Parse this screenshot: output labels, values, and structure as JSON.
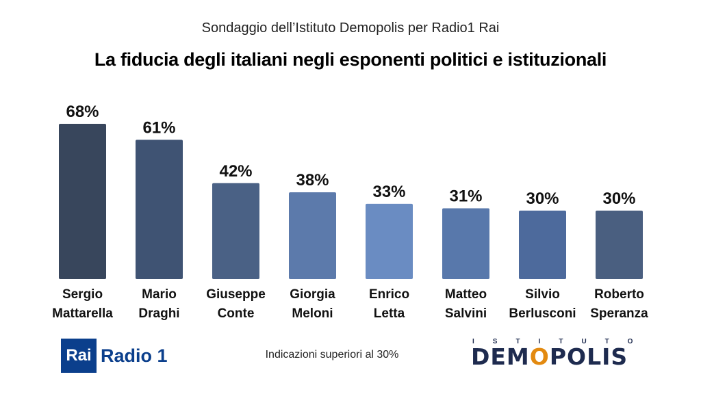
{
  "header": {
    "subtitle": "Sondaggio dell’Istituto Demopolis per Radio1 Rai",
    "title": "La fiducia degli italiani negli esponenti politici e istituzionali"
  },
  "chart_data": {
    "type": "bar",
    "title": "La fiducia degli italiani negli esponenti politici e istituzionali",
    "subtitle": "Sondaggio dell’Istituto Demopolis per Radio1 Rai",
    "categories": [
      [
        "Sergio",
        "Mattarella"
      ],
      [
        "Mario",
        "Draghi"
      ],
      [
        "Giuseppe",
        "Conte"
      ],
      [
        "Giorgia",
        "Meloni"
      ],
      [
        "Enrico",
        "Letta"
      ],
      [
        "Matteo",
        "Salvini"
      ],
      [
        "Silvio",
        "Berlusconi"
      ],
      [
        "Roberto",
        "Speranza"
      ]
    ],
    "values": [
      68,
      61,
      42,
      38,
      33,
      31,
      30,
      30
    ],
    "value_labels": [
      "68%",
      "61%",
      "42%",
      "38%",
      "33%",
      "31%",
      "30%",
      "30%"
    ],
    "bar_colors": [
      "#38465c",
      "#3f5373",
      "#4a6185",
      "#5c7aab",
      "#6a8cc2",
      "#5878ab",
      "#4d6a9c",
      "#4a5f80"
    ],
    "xlabel": "",
    "ylabel": "",
    "ylim": [
      0,
      68
    ],
    "grid": false,
    "legend": "none"
  },
  "footer": {
    "rai_box": "Rai",
    "radio_text": "Radio 1",
    "note": "Indicazioni superiori al  30%",
    "demopolis_top": "ISTITUTO",
    "demopolis_main_1": "DEM",
    "demopolis_main_o": "O",
    "demopolis_main_2": "POLIS"
  }
}
